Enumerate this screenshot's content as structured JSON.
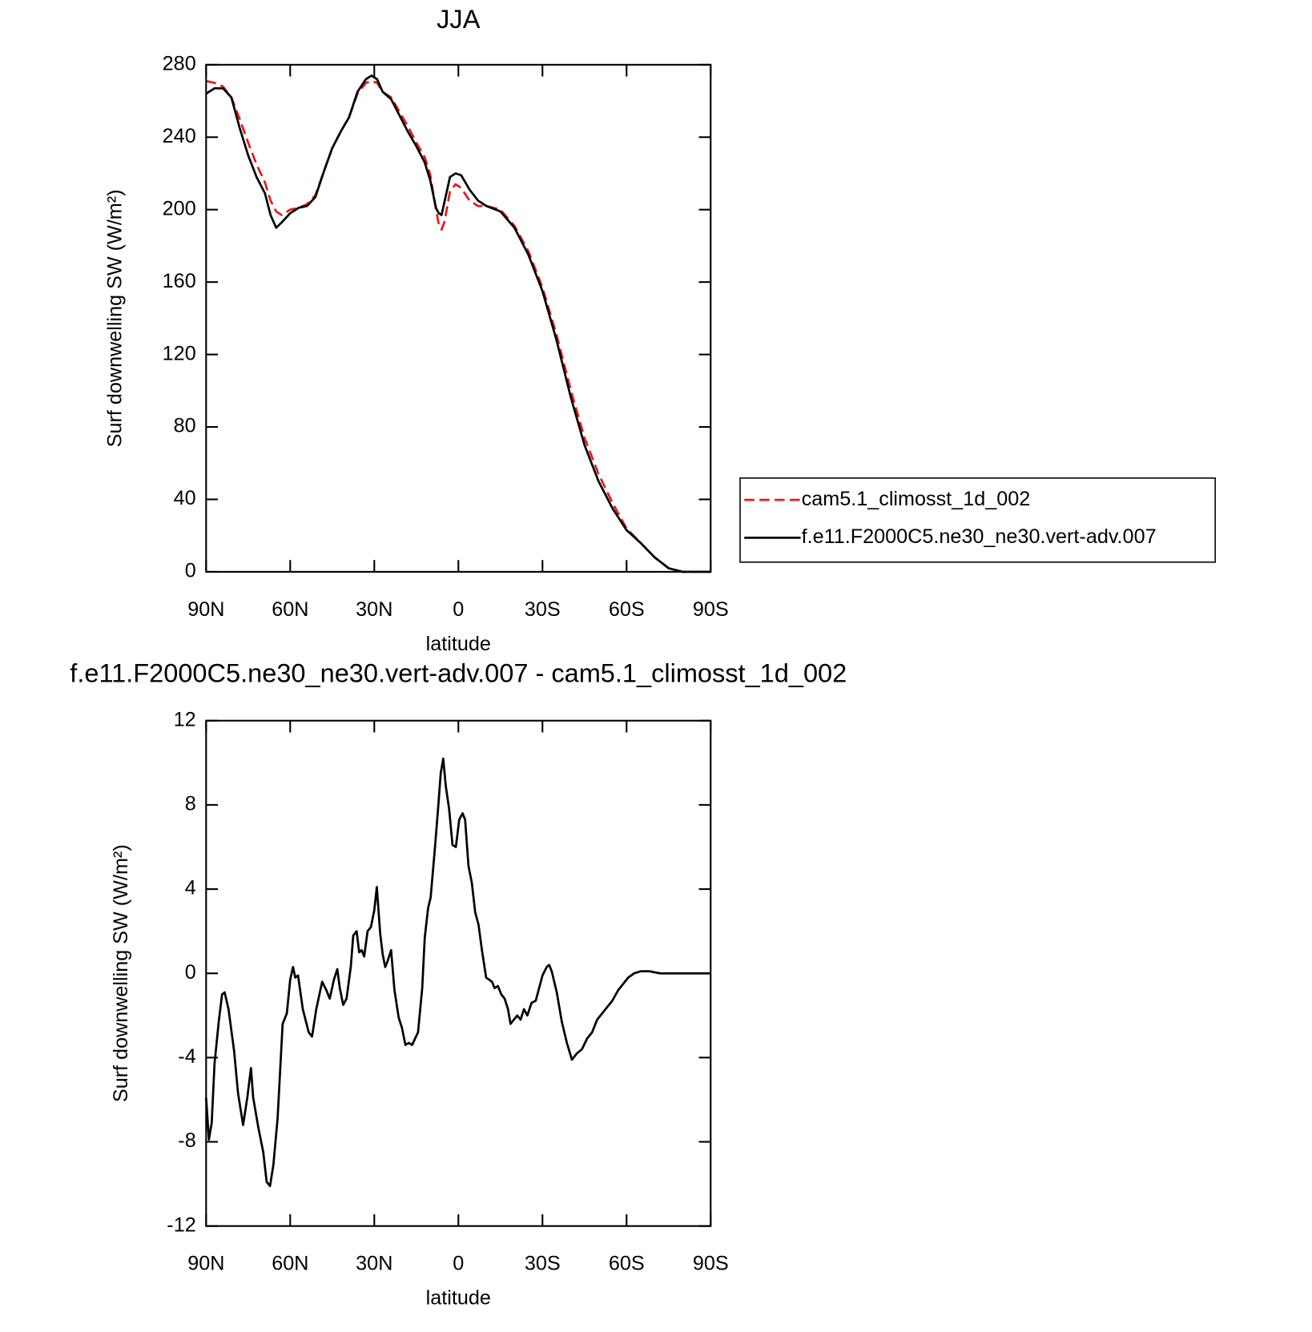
{
  "chart_data": [
    {
      "type": "line",
      "title": "JJA",
      "xlabel": "latitude",
      "ylabel": "Surf downwelling SW (W/m²)",
      "x": [
        90,
        87,
        84,
        81,
        78,
        75,
        72,
        69,
        67,
        65,
        63,
        60,
        57,
        54,
        51,
        48,
        45,
        42,
        39,
        36,
        33,
        31,
        29,
        27,
        24,
        21,
        18,
        15,
        12,
        10,
        8,
        7,
        6,
        5,
        3,
        1,
        -1,
        -4,
        -7,
        -10,
        -15,
        -20,
        -25,
        -30,
        -35,
        -40,
        -45,
        -50,
        -55,
        -60,
        -65,
        -70,
        -75,
        -80,
        -85,
        -90
      ],
      "series": [
        {
          "name": "cam5.1_climosst_1d_002",
          "color": "#e41a1c",
          "dashed": true,
          "values": [
            271,
            270,
            268,
            262,
            250,
            237,
            225,
            215,
            205,
            199,
            197,
            200,
            201,
            203,
            208,
            221,
            234,
            243,
            251,
            264,
            270,
            271,
            270,
            265,
            262,
            254,
            246,
            237,
            229,
            219,
            200,
            192,
            189,
            193,
            210,
            214,
            212,
            205,
            202,
            202,
            200,
            191,
            177,
            157,
            131,
            101,
            74,
            54,
            38,
            24,
            16,
            8,
            2,
            0,
            0,
            0
          ]
        },
        {
          "name": "f.e11.F2000C5.ne30_ne30.vert-adv.007",
          "color": "#000000",
          "dashed": false,
          "values": [
            264,
            267,
            267,
            262,
            245,
            230,
            218,
            209,
            197,
            190,
            193,
            198,
            201,
            202,
            207,
            221,
            234,
            243,
            251,
            265,
            272,
            274,
            272,
            265,
            261,
            252,
            243,
            235,
            226,
            216,
            201,
            198,
            197,
            204,
            218,
            220,
            219,
            211,
            205,
            202,
            199,
            190,
            175,
            155,
            128,
            97,
            70,
            50,
            35,
            23,
            16,
            8,
            2,
            0,
            0,
            0
          ]
        }
      ],
      "xlim": [
        90,
        -90
      ],
      "ylim": [
        0,
        280
      ],
      "xticks": [
        {
          "value": 90,
          "label": "90N"
        },
        {
          "value": 60,
          "label": "60N"
        },
        {
          "value": 30,
          "label": "30N"
        },
        0,
        {
          "value": -30,
          "label": "30S"
        },
        {
          "value": -60,
          "label": "60S"
        },
        {
          "value": -90,
          "label": "90S"
        }
      ],
      "yticks": [
        0,
        40,
        80,
        120,
        160,
        200,
        240,
        280
      ],
      "legend": "right"
    },
    {
      "type": "line",
      "title": "f.e11.F2000C5.ne30_ne30.vert-adv.007 - cam5.1_climosst_1d_002",
      "xlabel": "latitude",
      "ylabel": "Surf downwelling SW (W/m²)",
      "x": [
        90,
        89,
        88,
        87,
        85.5,
        84.3,
        83.4,
        82,
        80,
        78.6,
        76.8,
        75.3,
        74,
        73.2,
        71.4,
        69.6,
        68.4,
        67.2,
        66,
        64.5,
        62.7,
        61.2,
        60,
        59,
        58.2,
        57.2,
        55.5,
        53.4,
        52.2,
        50.7,
        48.6,
        47.1,
        45.9,
        44.4,
        43.2,
        42.3,
        41.1,
        39.9,
        38.4,
        37.5,
        36.3,
        35.4,
        34.5,
        33.6,
        32.4,
        31.2,
        30,
        29.1,
        27.9,
        27,
        26.1,
        25.2,
        24,
        22.8,
        21.3,
        20.1,
        18.9,
        17.7,
        16.5,
        14.4,
        12.9,
        12,
        10.8,
        9.9,
        8.4,
        7.2,
        6.3,
        5.4,
        4.5,
        3.3,
        2.1,
        0.9,
        -0.3,
        -1.5,
        -2.4,
        -3.6,
        -4.8,
        -6,
        -7.2,
        -8.4,
        -9.9,
        -12,
        -12.9,
        -14.1,
        -15.3,
        -16.5,
        -17.7,
        -18.6,
        -19.8,
        -21,
        -22.2,
        -23.4,
        -24.6,
        -26.1,
        -27.6,
        -30,
        -31.5,
        -32.4,
        -33.3,
        -35.1,
        -36.9,
        -38.7,
        -40.5,
        -42.3,
        -44.1,
        -45.9,
        -47.7,
        -49.5,
        -51.3,
        -53.1,
        -54.9,
        -57,
        -58.8,
        -60.6,
        -62.7,
        -65.1,
        -68.1,
        -72,
        -76.5,
        -90
      ],
      "values": [
        -5.9,
        -7.9,
        -7.1,
        -4.3,
        -2.3,
        -1.0,
        -0.9,
        -1.7,
        -3.7,
        -5.7,
        -7.2,
        -5.9,
        -4.5,
        -5.9,
        -7.3,
        -8.5,
        -9.9,
        -10.1,
        -9.1,
        -6.9,
        -2.4,
        -1.9,
        -0.3,
        0.3,
        -0.2,
        -0.1,
        -1.7,
        -2.8,
        -3.0,
        -1.7,
        -0.4,
        -0.8,
        -1.2,
        -0.3,
        0.2,
        -0.7,
        -1.5,
        -1.2,
        0.3,
        1.8,
        2.0,
        1.0,
        1.1,
        0.8,
        2.0,
        2.2,
        3.0,
        4.1,
        1.9,
        0.9,
        0.3,
        0.6,
        1.1,
        -0.8,
        -2.1,
        -2.6,
        -3.4,
        -3.3,
        -3.4,
        -2.8,
        -0.7,
        1.7,
        3.1,
        3.6,
        5.9,
        7.9,
        9.5,
        10.2,
        8.9,
        7.8,
        6.1,
        6.0,
        7.3,
        7.6,
        7.3,
        5.1,
        4.3,
        2.9,
        2.3,
        1.1,
        -0.2,
        -0.4,
        -0.7,
        -0.6,
        -1.0,
        -1.2,
        -1.7,
        -2.4,
        -2.2,
        -2.0,
        -2.2,
        -1.7,
        -2.0,
        -1.4,
        -1.3,
        -0.1,
        0.3,
        0.4,
        0.1,
        -0.9,
        -2.3,
        -3.3,
        -4.1,
        -3.8,
        -3.6,
        -3.1,
        -2.8,
        -2.2,
        -1.9,
        -1.6,
        -1.3,
        -0.8,
        -0.5,
        -0.2,
        0.0,
        0.1,
        0.1,
        0.0,
        0,
        0
      ],
      "color": "#000000",
      "xlim": [
        90,
        -90
      ],
      "ylim": [
        -12,
        12
      ],
      "xticks": [
        {
          "value": 90,
          "label": "90N"
        },
        {
          "value": 60,
          "label": "60N"
        },
        {
          "value": 30,
          "label": "30N"
        },
        0,
        {
          "value": -30,
          "label": "30S"
        },
        {
          "value": -60,
          "label": "60S"
        },
        {
          "value": -90,
          "label": "90S"
        }
      ],
      "yticks": [
        -12,
        -8,
        -4,
        0,
        4,
        8,
        12
      ]
    }
  ]
}
